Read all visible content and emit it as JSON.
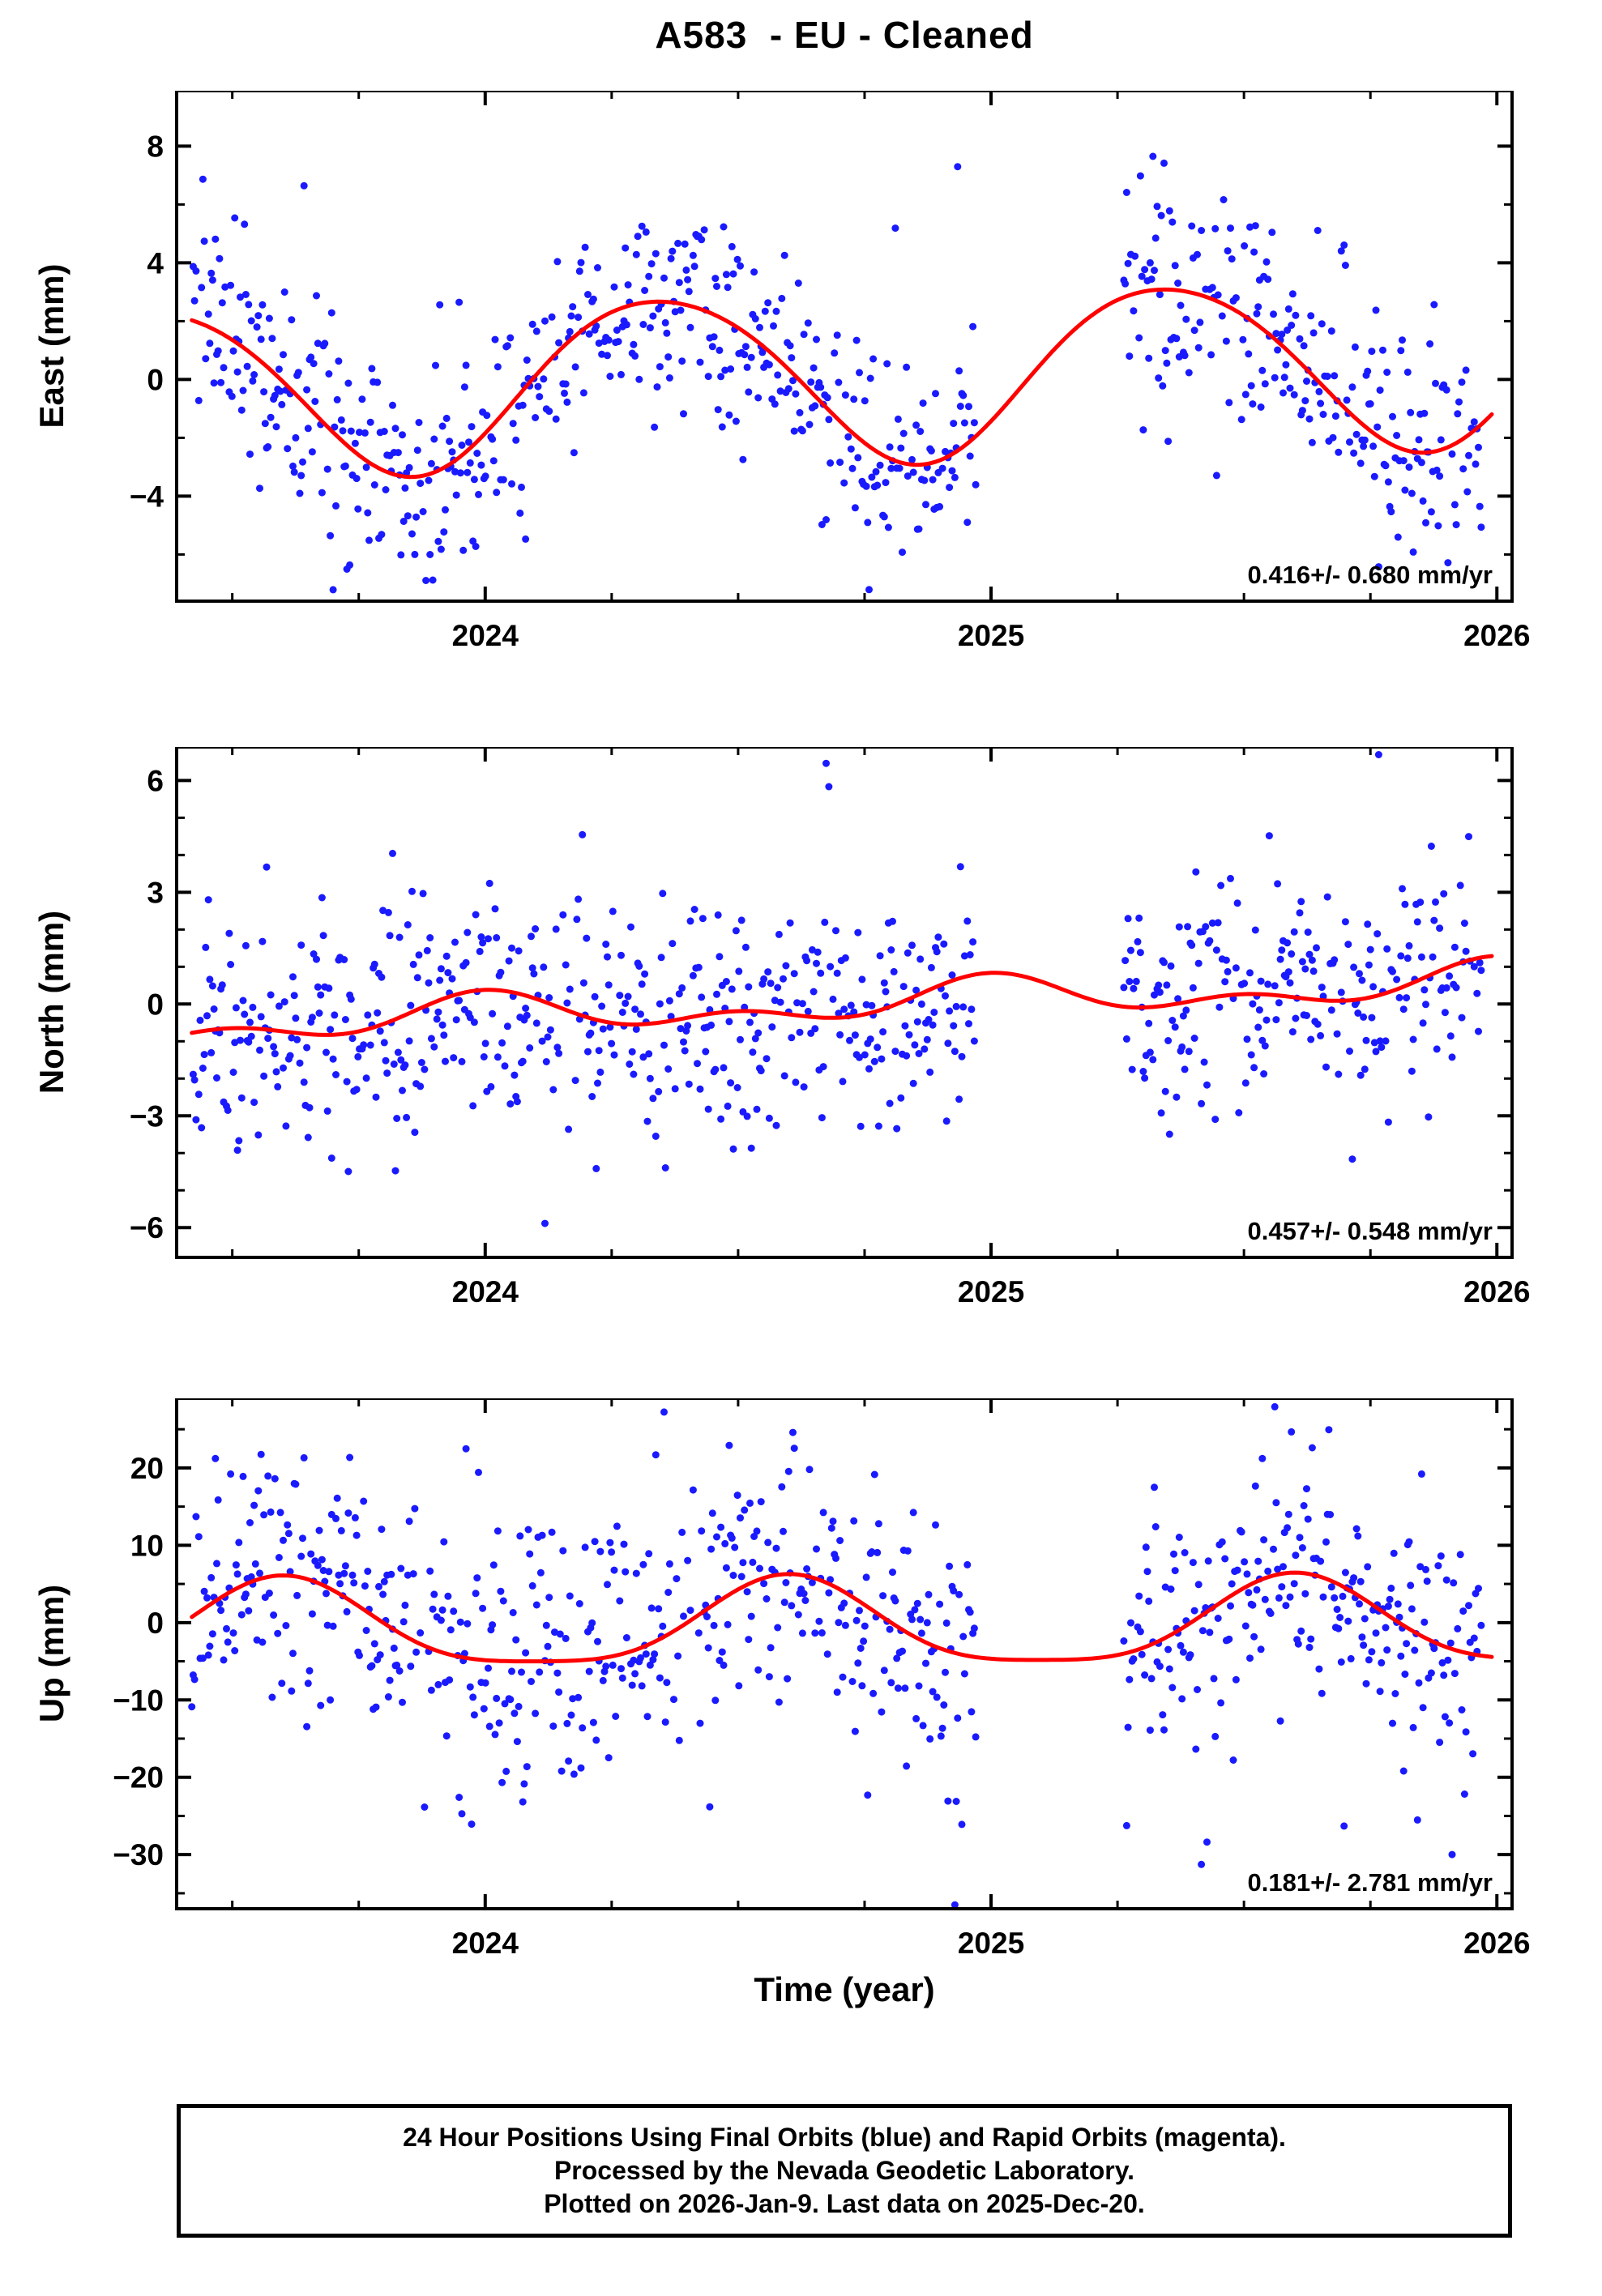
{
  "title": "A583  - EU - Cleaned",
  "footer": {
    "line1": "24 Hour Positions Using Final Orbits (blue) and Rapid Orbits (magenta).",
    "line2": "Processed by the Nevada Geodetic Laboratory.",
    "line3": "Plotted on 2026-Jan-9. Last data on 2025-Dec-20."
  },
  "colors": {
    "points": "#1a1aff",
    "curve": "#ff0000",
    "frame": "#000000",
    "text": "#000000"
  },
  "x_axis": {
    "label": "Time (year)",
    "min": 2023.39,
    "max": 2026.03,
    "ticks": [
      2024,
      2025,
      2026
    ],
    "minor_step": 0.25
  },
  "data_span": {
    "start": 2023.42,
    "end": 2025.97,
    "gap_start": 2024.97,
    "gap_end": 2025.26
  },
  "chart_data": [
    {
      "type": "scatter",
      "name": "east",
      "ylabel": "East (mm)",
      "ylim": [
        -7.6,
        9.9
      ],
      "yticks": [
        -4,
        0,
        4,
        8
      ],
      "yminor_step": 2,
      "rate_label": "0.416+/- 0.680 mm/yr",
      "trend_mm_per_yr": 0.416,
      "trend_uncertainty": 0.68,
      "model": {
        "slope": 0.416,
        "tref": 2024.7,
        "offset": 0.15,
        "annual_amp": 2.9,
        "annual_t0": 2024.1,
        "semi_amp": 0.25,
        "semi_t0": 2024.0
      },
      "noise_sigma": 1.85,
      "seed": 101
    },
    {
      "type": "scatter",
      "name": "north",
      "ylabel": "North (mm)",
      "ylim": [
        -6.8,
        6.9
      ],
      "yticks": [
        -6,
        -3,
        0,
        3,
        6
      ],
      "yminor_step": 1,
      "rate_label": "0.457+/- 0.548 mm/yr",
      "trend_mm_per_yr": 0.457,
      "trend_uncertainty": 0.548,
      "model": {
        "slope": 0.457,
        "tref": 2024.7,
        "offset": 0.0,
        "annual_amp": 0.4,
        "annual_t0": 2023.75,
        "semi_amp": 0.3,
        "semi_t0": 2023.375
      },
      "noise_sigma": 1.45,
      "seed": 202
    },
    {
      "type": "scatter",
      "name": "up",
      "ylabel": "Up (mm)",
      "ylim": [
        -37,
        29
      ],
      "yticks": [
        -30,
        -20,
        -10,
        0,
        10,
        20
      ],
      "yminor_step": 5,
      "rate_label": "0.181+/- 2.781 mm/yr",
      "trend_mm_per_yr": 0.181,
      "trend_uncertainty": 2.781,
      "model": {
        "slope": 0.181,
        "tref": 2024.7,
        "offset": -0.6,
        "annual_amp": 5.6,
        "annual_t0": 2024.35,
        "semi_amp": 1.3,
        "semi_t0": 2024.475
      },
      "noise_sigma": 8.0,
      "seed": 303
    }
  ]
}
